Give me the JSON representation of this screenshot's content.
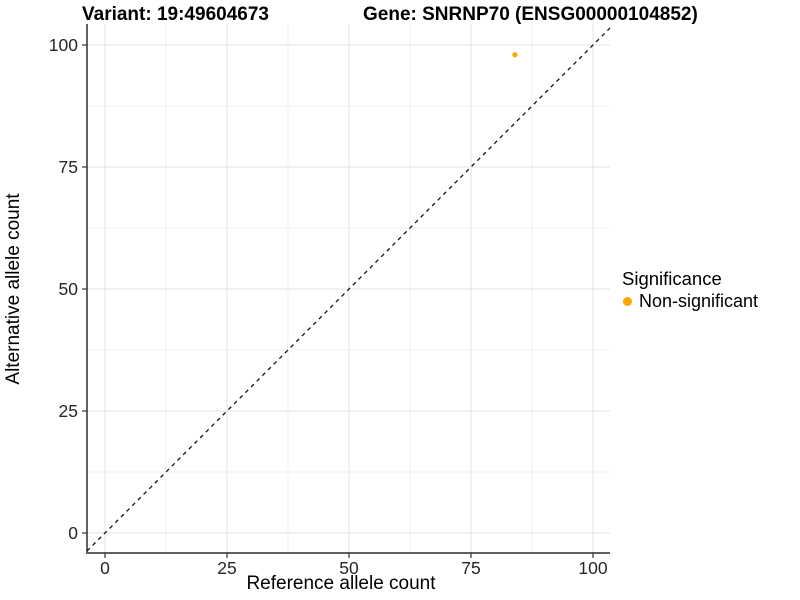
{
  "chart_data": {
    "type": "scatter",
    "title_left": "Variant: 19:49604673",
    "title_right": "Gene: SNRNP70 (ENSG00000104852)",
    "xlabel": "Reference allele count",
    "ylabel": "Alternative allele count",
    "x_ticks": [
      0,
      25,
      50,
      75,
      100
    ],
    "y_ticks": [
      0,
      25,
      50,
      75,
      100
    ],
    "x_minor_ticks": [
      12.5,
      37.5,
      62.5,
      87.5
    ],
    "y_minor_ticks": [
      12.5,
      37.5,
      62.5,
      87.5
    ],
    "xlim": [
      -3.7,
      103.5
    ],
    "ylim": [
      -4.1,
      104.3
    ],
    "grid": "major+minor",
    "identity_line": {
      "slope": 1,
      "intercept": 0,
      "style": "dashed",
      "color": "#111111"
    },
    "series": [
      {
        "name": "Non-significant",
        "color": "#FFA500",
        "points": [
          {
            "x": 84,
            "y": 98
          }
        ]
      }
    ],
    "legend": {
      "title": "Significance",
      "position": "right",
      "items": [
        {
          "label": "Non-significant",
          "color": "#FFA500"
        }
      ]
    },
    "colors": {
      "background": "#ffffff",
      "grid_major": "#e3e3e3",
      "grid_minor": "#f1f1f1",
      "axis_line_y": "#1f1f1f",
      "axis_line_x": "#5f5f5f",
      "tick_mark": "#333333",
      "tick_label": "#262626",
      "title": "#000000"
    }
  }
}
